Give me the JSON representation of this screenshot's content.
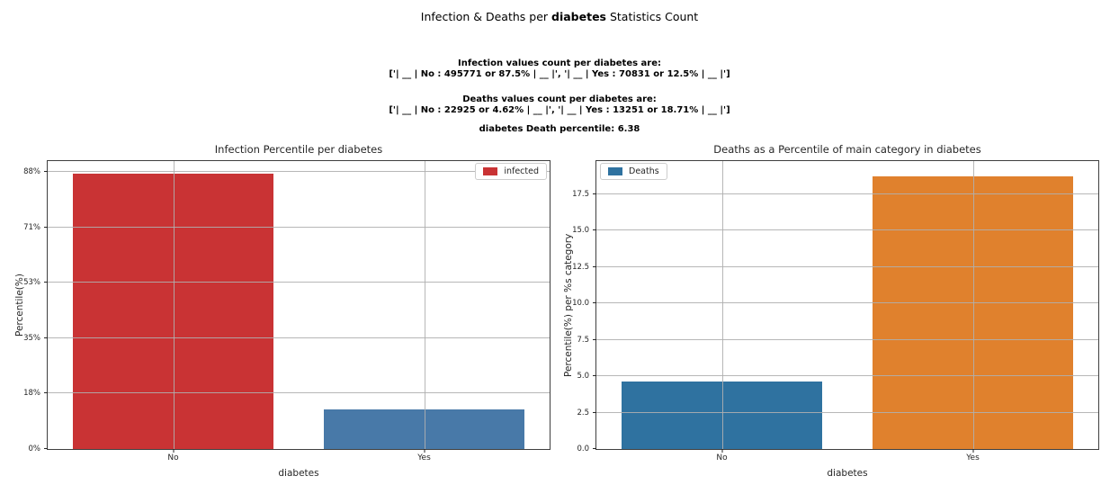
{
  "title": {
    "prefix": "Infection & Deaths per ",
    "bold": "diabetes",
    "suffix": " Statistics Count"
  },
  "stats": {
    "infection_header": "Infection values count per diabetes are:",
    "infection_values": "['| __ | No : 495771 or 87.5% | __ |', '| __ | Yes : 70831 or 12.5% | __ |']",
    "deaths_header": "Deaths values count per diabetes are:",
    "deaths_values": "['| __ | No : 22925 or 4.62% | __ |', '| __ | Yes : 13251 or 18.71% | __ |']",
    "percentile_line": "diabetes Death percentile: 6.38"
  },
  "chart_data": [
    {
      "type": "bar",
      "title": "Infection Percentile per diabetes",
      "xlabel": "diabetes",
      "ylabel": "Percentile(%)",
      "categories": [
        "No",
        "Yes"
      ],
      "values": [
        87.5,
        12.5
      ],
      "bar_colors": [
        "#c93334",
        "#4879a8"
      ],
      "ytick_labels": [
        "0%",
        "18%",
        "35%",
        "53%",
        "71%",
        "88%"
      ],
      "ytick_values": [
        0,
        17.6,
        35.2,
        52.8,
        70.4,
        88
      ],
      "ylim": [
        0,
        91.4
      ],
      "grid": true,
      "legend": {
        "label": "infected",
        "color": "#c93334",
        "position": "top-right"
      }
    },
    {
      "type": "bar",
      "title": "Deaths as a Percentile of main category in diabetes",
      "xlabel": "diabetes",
      "ylabel": "Percentile(%) per %s category",
      "categories": [
        "No",
        "Yes"
      ],
      "values": [
        4.62,
        18.71
      ],
      "bar_colors": [
        "#2f72a0",
        "#e0812d"
      ],
      "ytick_labels": [
        "0.0",
        "2.5",
        "5.0",
        "7.5",
        "10.0",
        "12.5",
        "15.0",
        "17.5"
      ],
      "ytick_values": [
        0,
        2.5,
        5,
        7.5,
        10,
        12.5,
        15,
        17.5
      ],
      "ylim": [
        0,
        19.77
      ],
      "grid": true,
      "legend": {
        "label": "Deaths",
        "color": "#2f72a0",
        "position": "top-left"
      }
    }
  ]
}
